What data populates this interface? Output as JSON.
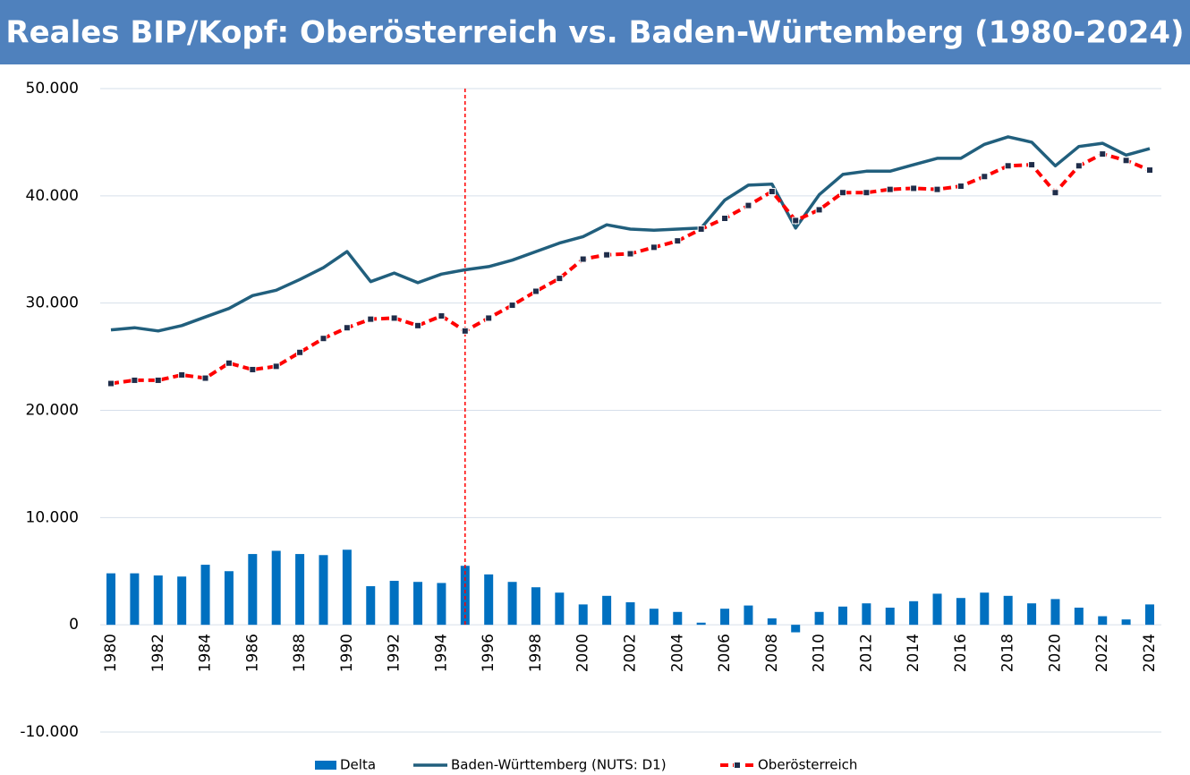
{
  "chart_data": {
    "type": "combo",
    "title": "Reales BIP/Kopf: Oberösterreich  vs. Baden-Würtemberg  (1980-2024)",
    "categories": [
      "1980",
      null,
      "1982",
      null,
      "1984",
      null,
      "1986",
      null,
      "1988",
      null,
      "1990",
      null,
      "1992",
      null,
      "1994",
      null,
      "1996",
      null,
      "1998",
      null,
      "2000",
      null,
      "2002",
      null,
      "2004",
      null,
      "2006",
      null,
      "2008",
      null,
      "2010",
      null,
      "2012",
      null,
      "2014",
      null,
      "2016",
      null,
      "2018",
      null,
      "2020",
      null,
      "2022",
      null,
      "2024"
    ],
    "series": [
      {
        "name": "Delta",
        "type": "bar",
        "color": "#0070c0",
        "values": [
          4800,
          4800,
          4600,
          4500,
          5600,
          5000,
          6600,
          6900,
          6600,
          6500,
          7000,
          3600,
          4100,
          4000,
          3900,
          5500,
          4700,
          4000,
          3500,
          3000,
          1900,
          2700,
          2100,
          1500,
          1200,
          200,
          1500,
          1800,
          600,
          -700,
          1200,
          1700,
          2000,
          1600,
          2200,
          2900,
          2500,
          3000,
          2700,
          2000,
          2400,
          1600,
          800,
          500,
          1900
        ]
      },
      {
        "name": "Baden-Württemberg (NUTS: D1)",
        "type": "line",
        "color": "#215f7d",
        "values": [
          27500,
          27700,
          27400,
          27900,
          28700,
          29500,
          30700,
          31200,
          32200,
          33300,
          34800,
          32000,
          32800,
          31900,
          32700,
          33100,
          33400,
          34000,
          34800,
          35600,
          36200,
          37300,
          36900,
          36800,
          36900,
          37000,
          39600,
          41000,
          41100,
          37000,
          40100,
          42000,
          42300,
          42300,
          42900,
          43500,
          43500,
          44800,
          45500,
          45000,
          42800,
          44600,
          44900,
          43800,
          44400
        ]
      },
      {
        "name": "Oberösterreich",
        "type": "line",
        "color": "#ff0000",
        "dashed": true,
        "marker_color": "#1f2d4a",
        "values": [
          22500,
          22800,
          22800,
          23300,
          23000,
          24400,
          23800,
          24100,
          25400,
          26700,
          27700,
          28500,
          28600,
          27900,
          28800,
          27400,
          28600,
          29800,
          31100,
          32300,
          34100,
          34500,
          34600,
          35200,
          35800,
          36900,
          37900,
          39100,
          40400,
          37700,
          38700,
          40300,
          40300,
          40600,
          40700,
          40600,
          40900,
          41800,
          42800,
          42900,
          40300,
          42800,
          43900,
          43300,
          42400
        ]
      }
    ],
    "ylim": [
      -10000,
      50000
    ],
    "yticks": [
      {
        "value": -10000,
        "label": "-10.000"
      },
      0,
      {
        "value": 10000,
        "label": "10.000"
      },
      {
        "value": 20000,
        "label": "20.000"
      },
      {
        "value": 30000,
        "label": "30.000"
      },
      {
        "value": 40000,
        "label": "40.000"
      },
      {
        "value": 50000,
        "label": "50.000"
      }
    ],
    "grid": true,
    "legend": "bottom",
    "reference_line": {
      "x": "1995",
      "color": "#ff0000"
    }
  }
}
